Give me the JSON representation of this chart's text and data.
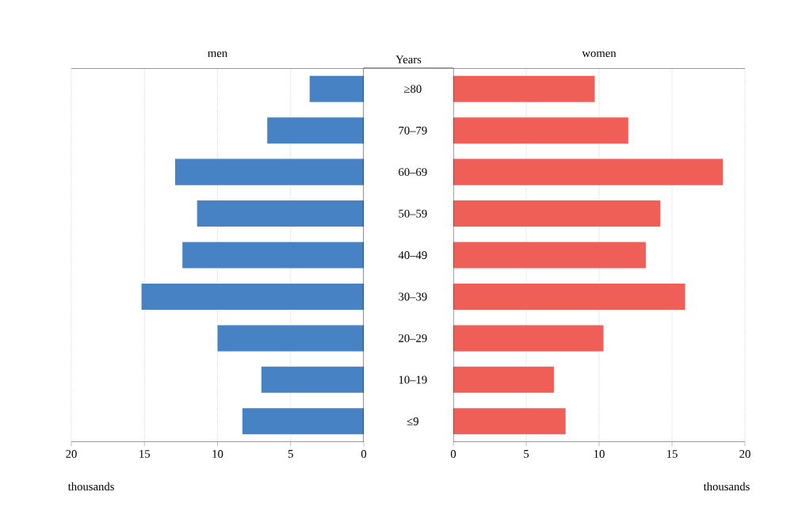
{
  "chart_data": [
    {
      "type": "bar",
      "orientation": "horizontal",
      "title": "men",
      "ylabel": "Years",
      "xlabel": "thousands",
      "categories": [
        "≥80",
        "70–79",
        "60–69",
        "50–59",
        "40–49",
        "30–39",
        "20–29",
        "10–19",
        "≤9"
      ],
      "values": [
        3.7,
        6.6,
        12.9,
        11.4,
        12.4,
        15.2,
        10.0,
        7.0,
        8.3
      ],
      "color": "#4682c4",
      "xlim": [
        20,
        0
      ],
      "xticks": [
        20,
        15,
        10,
        5,
        0
      ],
      "grid": "x"
    },
    {
      "type": "bar",
      "orientation": "horizontal",
      "title": "women",
      "xlabel": "thousands",
      "categories": [
        null,
        null,
        null,
        null,
        null,
        null,
        null,
        null,
        null
      ],
      "values": [
        9.7,
        12.0,
        18.5,
        14.2,
        13.2,
        15.9,
        10.3,
        6.9,
        7.7
      ],
      "color": "#f05f57",
      "xlim": [
        0,
        20
      ],
      "xticks": [
        0,
        5,
        10,
        15,
        20
      ],
      "grid": "x"
    }
  ]
}
